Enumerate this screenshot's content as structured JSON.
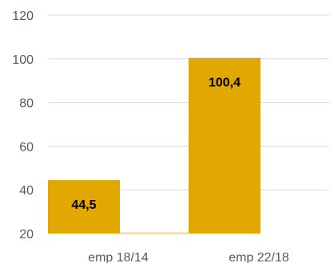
{
  "chart_data": {
    "type": "bar",
    "categories": [
      "emp 18/14",
      "emp 22/18"
    ],
    "values": [
      44.5,
      100.4
    ],
    "data_labels": [
      "44,5",
      "100,4"
    ],
    "baseline_marker_value": 20.5,
    "title": "",
    "xlabel": "",
    "ylabel": "",
    "ylim": [
      20,
      120
    ],
    "yticks": [
      20,
      40,
      60,
      80,
      100,
      120
    ],
    "ytick_labels": [
      "20",
      "40",
      "60",
      "80",
      "100",
      "120"
    ],
    "grid": true,
    "legend": "none",
    "colors": {
      "bar": "#E0A800",
      "baseline_marker": "#F2D58A",
      "grid": "#D9D9D9",
      "tick_text": "#595959",
      "label_text": "#000000"
    }
  }
}
